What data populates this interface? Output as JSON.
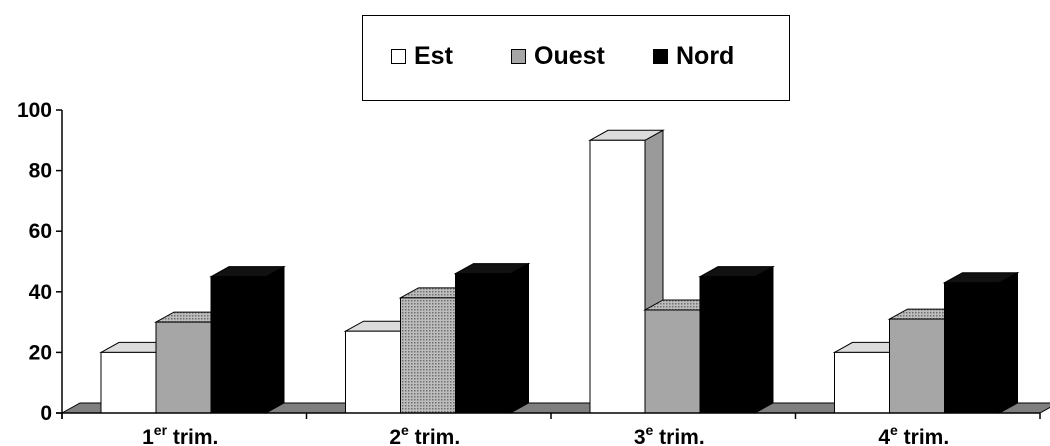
{
  "chart_data": {
    "type": "bar",
    "categories": [
      {
        "main": "1",
        "sup": "er",
        "rest": " trim."
      },
      {
        "main": "2",
        "sup": "e",
        "rest": " trim."
      },
      {
        "main": "3",
        "sup": "e",
        "rest": " trim."
      },
      {
        "main": "4",
        "sup": "e",
        "rest": " trim."
      }
    ],
    "series": [
      {
        "name": "Est",
        "values": [
          20,
          27,
          90,
          20
        ],
        "color": "#ffffff"
      },
      {
        "name": "Ouest",
        "values": [
          30,
          38,
          34,
          31
        ],
        "color": "#a6a6a6"
      },
      {
        "name": "Nord",
        "values": [
          45,
          46,
          45,
          43
        ],
        "color": "#000000"
      }
    ],
    "ylim": [
      0,
      100
    ],
    "yticks": [
      "0",
      "20",
      "40",
      "60",
      "80",
      "100"
    ],
    "legend": "top",
    "grid": false,
    "chart_3d": true
  }
}
